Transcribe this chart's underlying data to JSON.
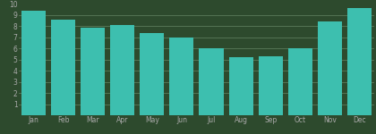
{
  "months": [
    "Jan",
    "Feb",
    "Mar",
    "Apr",
    "May",
    "Jun",
    "Jul",
    "Aug",
    "Sep",
    "Oct",
    "Nov",
    "Dec"
  ],
  "values": [
    9.4,
    8.6,
    7.9,
    8.1,
    7.4,
    7.0,
    6.0,
    5.2,
    5.3,
    6.0,
    8.4,
    9.6
  ],
  "bar_color": "#3dbfaf",
  "background_color": "#2d4a2d",
  "grid_color": "#5a7a5a",
  "tick_color": "#aaaaaa",
  "ylim": [
    0,
    10
  ],
  "yticks": [
    1,
    2,
    3,
    4,
    5,
    6,
    7,
    8,
    9,
    10
  ],
  "bar_width": 0.82,
  "tick_fontsize": 5.5,
  "label_fontsize": 5.5
}
